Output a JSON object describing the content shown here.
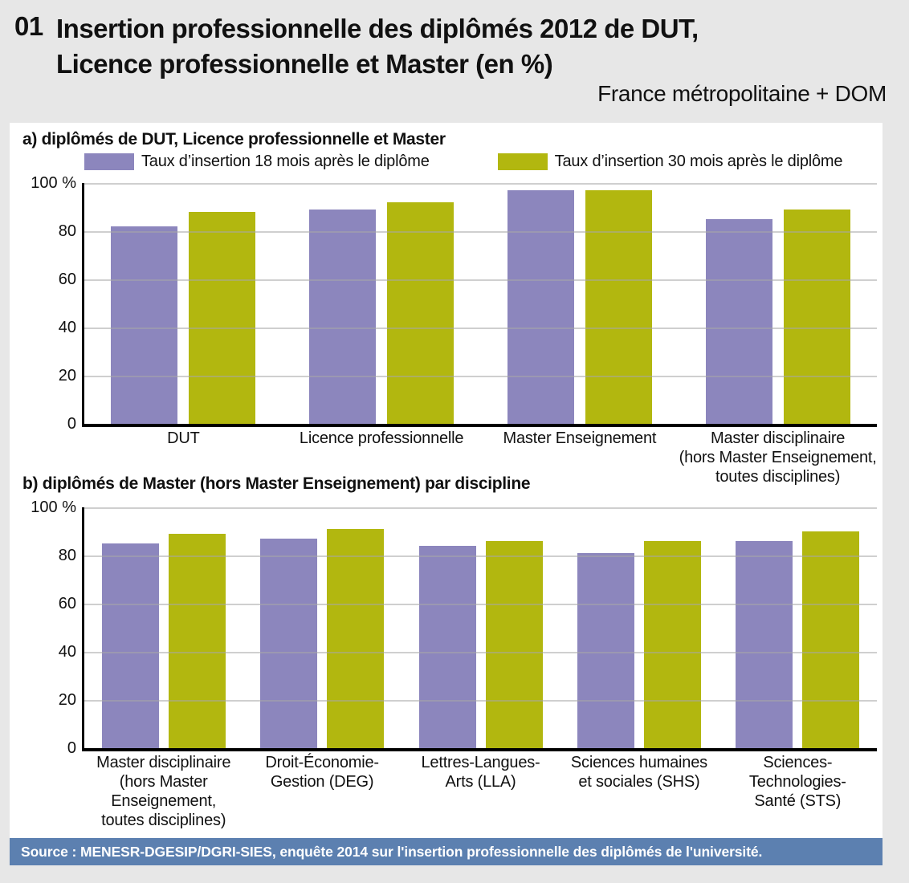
{
  "header": {
    "number": "01",
    "title_line1": "Insertion professionnelle des diplômés 2012 de DUT,",
    "title_line2": "Licence professionnelle et Master (en %)",
    "subtitle": "France métropolitaine + DOM"
  },
  "colors": {
    "series_18_months": "#8c86bd",
    "series_30_months": "#b2b70f",
    "page_background": "#e7e7e7",
    "panel_background": "#ffffff",
    "gridline": "#c8c8c8",
    "source_bar_background": "#5c80b0"
  },
  "chart_data": [
    {
      "id": "a",
      "type": "bar",
      "title": "a) diplômés de DUT, Licence professionnelle et Master",
      "legend_position": "top",
      "grid": true,
      "ylim": [
        0,
        100
      ],
      "yticks": [
        {
          "value": 100,
          "label": "100 %"
        },
        {
          "value": 80,
          "label": "80"
        },
        {
          "value": 60,
          "label": "60"
        },
        {
          "value": 40,
          "label": "40"
        },
        {
          "value": 20,
          "label": "20"
        },
        {
          "value": 0,
          "label": "0"
        }
      ],
      "categories": [
        [
          "DUT"
        ],
        [
          "Licence professionnelle"
        ],
        [
          "Master Enseignement"
        ],
        [
          "Master disciplinaire",
          "(hors Master Enseignement,",
          "toutes disciplines)"
        ]
      ],
      "series": [
        {
          "id": "18m",
          "name": "Taux d’insertion 18 mois après le diplôme",
          "color": "#8c86bd",
          "values": [
            82,
            89,
            97,
            85
          ]
        },
        {
          "id": "30m",
          "name": "Taux d’insertion 30 mois après le diplôme",
          "color": "#b2b70f",
          "values": [
            88,
            92,
            97,
            89
          ]
        }
      ]
    },
    {
      "id": "b",
      "type": "bar",
      "title": "b) diplômés de Master (hors Master Enseignement) par discipline",
      "legend_position": "none",
      "grid": true,
      "ylim": [
        0,
        100
      ],
      "yticks": [
        {
          "value": 100,
          "label": "100 %"
        },
        {
          "value": 80,
          "label": "80"
        },
        {
          "value": 60,
          "label": "60"
        },
        {
          "value": 40,
          "label": "40"
        },
        {
          "value": 20,
          "label": "20"
        },
        {
          "value": 0,
          "label": "0"
        }
      ],
      "categories": [
        [
          "Master disciplinaire",
          "(hors Master",
          "Enseignement,",
          "toutes disciplines)"
        ],
        [
          "Droit-Économie-",
          "Gestion (DEG)"
        ],
        [
          "Lettres-Langues-",
          "Arts (LLA)"
        ],
        [
          "Sciences humaines",
          "et sociales (SHS)"
        ],
        [
          "Sciences-",
          "Technologies-",
          "Santé (STS)"
        ]
      ],
      "series": [
        {
          "id": "18m",
          "name": "Taux d’insertion 18 mois après le diplôme",
          "color": "#8c86bd",
          "values": [
            85,
            87,
            84,
            81,
            86
          ]
        },
        {
          "id": "30m",
          "name": "Taux d’insertion 30 mois après le diplôme",
          "color": "#b2b70f",
          "values": [
            89,
            91,
            86,
            86,
            90
          ]
        }
      ]
    }
  ],
  "source_bar": {
    "text": "Source : MENESR-DGESIP/DGRI-SIES, enquête 2014 sur l'insertion professionnelle des diplômés de l'université.",
    "background": "#5c80b0"
  }
}
